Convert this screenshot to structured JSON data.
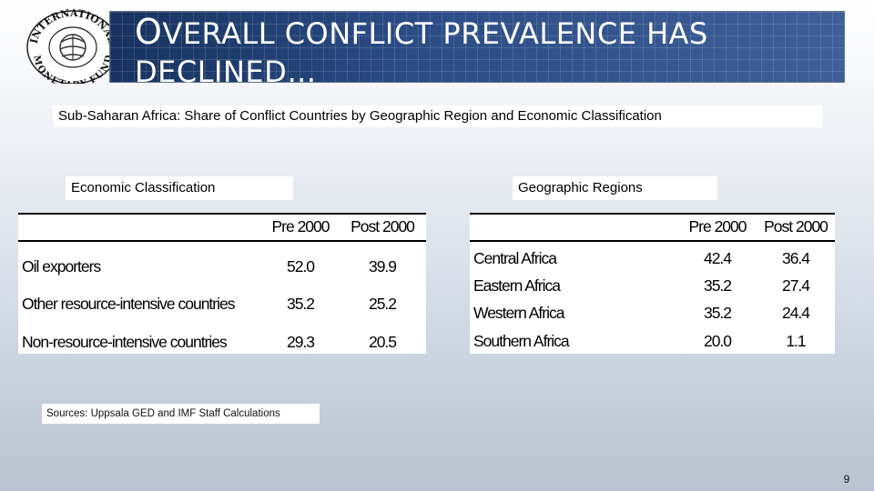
{
  "logo": {
    "text_top": "INTERNATIONAL",
    "text_bottom": "MONETARY FUND",
    "icon": "imf-seal-icon"
  },
  "title": {
    "cap": "O",
    "line1_rest": "VERALL  CONFLICT  PREVALENCE  HAS",
    "line2": "DECLINED…"
  },
  "subtitle": "Sub-Saharan Africa: Share of Conflict Countries by  Geographic Region and Economic Classification",
  "econ": {
    "label": "Economic Classification",
    "col_pre": "Pre 2000",
    "col_post": "Post 2000",
    "rows": [
      {
        "name": "Oil exporters",
        "pre": "52.0",
        "post": "39.9"
      },
      {
        "name": "Other resource-intensive countries",
        "pre": "35.2",
        "post": "25.2"
      },
      {
        "name": "Non-resource-intensive countries",
        "pre": "29.3",
        "post": "20.5"
      }
    ]
  },
  "geo": {
    "label": "Geographic Regions",
    "col_pre": "Pre 2000",
    "col_post": "Post 2000",
    "rows": [
      {
        "name": "Central Africa",
        "pre": "42.4",
        "post": "36.4"
      },
      {
        "name": "Eastern Africa",
        "pre": "35.2",
        "post": "27.4"
      },
      {
        "name": "Western Africa",
        "pre": "35.2",
        "post": "24.4"
      },
      {
        "name": "Southern Africa",
        "pre": "20.0",
        "post": "1.1"
      }
    ]
  },
  "footnote": "Sources: Uppsala GED and IMF Staff Calculations",
  "page_number": "9"
}
